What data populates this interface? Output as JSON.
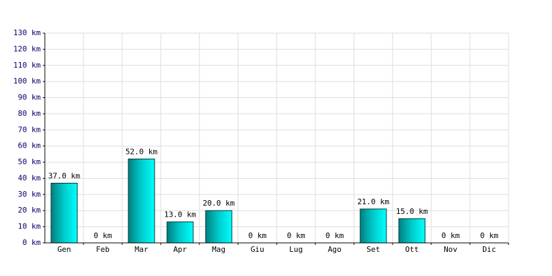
{
  "chart_data": {
    "type": "bar",
    "categories": [
      "Gen",
      "Feb",
      "Mar",
      "Apr",
      "Mag",
      "Giu",
      "Lug",
      "Ago",
      "Set",
      "Ott",
      "Nov",
      "Dic"
    ],
    "values": [
      37,
      0,
      52,
      13,
      20,
      0,
      0,
      0,
      21,
      15,
      0,
      0
    ],
    "value_labels": [
      "37.0 km",
      "0 km",
      "52.0 km",
      "13.0 km",
      "20.0 km",
      "0 km",
      "0 km",
      "0 km",
      "21.0 km",
      "15.0 km",
      "0 km",
      "0 km"
    ],
    "color": "#00cccc",
    "ylim": [
      0,
      130
    ],
    "yticks": [
      {
        "value": 0,
        "label": "0 km"
      },
      {
        "value": 10,
        "label": "10 km"
      },
      {
        "value": 20,
        "label": "20 km"
      },
      {
        "value": 30,
        "label": "30 km"
      },
      {
        "value": 40,
        "label": "40 km"
      },
      {
        "value": 50,
        "label": "50 km"
      },
      {
        "value": 60,
        "label": "60 km"
      },
      {
        "value": 70,
        "label": "70 km"
      },
      {
        "value": 80,
        "label": "80 km"
      },
      {
        "value": 90,
        "label": "90 km"
      },
      {
        "value": 100,
        "label": "100 km"
      },
      {
        "value": 110,
        "label": "110 km"
      },
      {
        "value": 120,
        "label": "120 km"
      },
      {
        "value": 130,
        "label": "130 km"
      }
    ],
    "grid": true
  }
}
